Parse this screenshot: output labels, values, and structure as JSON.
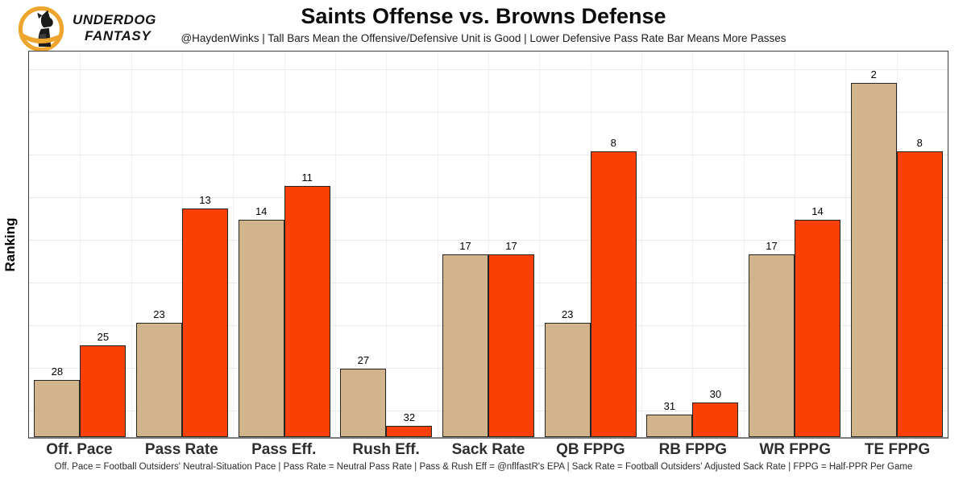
{
  "logo": {
    "brand_line1": "UNDERDOG",
    "brand_line2": "FANTASY",
    "gold": "#EDA52E",
    "dog_color": "#1b1b1b"
  },
  "header": {
    "title": "Saints Offense vs. Browns Defense",
    "subtitle": "@HaydenWinks | Tall Bars Mean the Offensive/Defensive Unit is Good | Lower Defensive Pass Rate Bar Means More Passes"
  },
  "chart_data": {
    "type": "bar",
    "title": "Saints Offense vs. Browns Defense",
    "subtitle": "@HaydenWinks | Tall Bars Mean the Offensive/Defensive Unit is Good | Lower Defensive Pass Rate Bar Means More Passes",
    "ylabel": "Ranking",
    "xlabel": "",
    "categories": [
      "Off. Pace",
      "Pass Rate",
      "Pass Eff.",
      "Rush Eff.",
      "Sack Rate",
      "QB FPPG",
      "RB FPPG",
      "WR FPPG",
      "TE FPPG"
    ],
    "series": [
      {
        "name": "Offense (Saints)",
        "color": "#D2B48C",
        "values": [
          28,
          23,
          14,
          27,
          17,
          23,
          31,
          17,
          2
        ]
      },
      {
        "name": "Defense (Browns)",
        "color": "#FB4005",
        "values": [
          25,
          13,
          11,
          32,
          17,
          8,
          30,
          14,
          8
        ]
      }
    ],
    "value_meaning": "NFL ranking 1-32; lower rank is better and is drawn as a taller bar (height proportional to 33 minus rank)",
    "ylim": [
      0,
      32
    ],
    "grid": true,
    "legend": "none",
    "bar_outline_color": "#252525"
  },
  "caption": {
    "text": "Off. Pace = Football Outsiders' Neutral-Situation Pace | Pass Rate = Neutral Pass Rate | Pass & Rush Eff = @nflfastR's EPA | Sack Rate = Football Outsiders' Adjusted Sack Rate | FPPG = Half-PPR Per Game"
  }
}
